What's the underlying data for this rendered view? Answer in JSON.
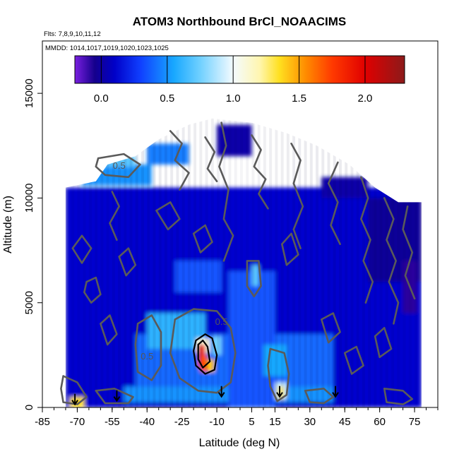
{
  "chart_data": {
    "type": "heatmap",
    "title": "ATOM3 Northbound BrCl_NOAACIMS",
    "subtitle_flights": "Flts: 7,8,9,10,11,12",
    "subtitle_dates": "MMDD: 1014,1017,1019,1020,1023,1025",
    "xlabel": "Latitude (deg N)",
    "ylabel": "Altitude (m)",
    "xlim": [
      -85,
      85
    ],
    "ylim": [
      0,
      17500
    ],
    "x_ticks": [
      -85,
      -70,
      -55,
      -40,
      -25,
      -10,
      5,
      15,
      30,
      45,
      60,
      75
    ],
    "y_ticks": [
      0,
      5000,
      10000,
      15000
    ],
    "colorbar": {
      "range": [
        -0.2,
        2.3
      ],
      "ticks": [
        0.0,
        0.5,
        1.0,
        1.5,
        2.0
      ],
      "tick_labels": [
        "0.0",
        "0.5",
        "1.0",
        "1.5",
        "2.0"
      ]
    },
    "colormap": [
      [
        -0.2,
        "#7a1fe0"
      ],
      [
        -0.05,
        "#15008c"
      ],
      [
        0.1,
        "#0000c8"
      ],
      [
        0.3,
        "#1040ff"
      ],
      [
        0.55,
        "#18a8ff"
      ],
      [
        0.75,
        "#70d0ff"
      ],
      [
        1.0,
        "#f4fbff"
      ],
      [
        1.2,
        "#fff6b0"
      ],
      [
        1.35,
        "#ffe020"
      ],
      [
        1.55,
        "#ff8c00"
      ],
      [
        1.75,
        "#ff3a00"
      ],
      [
        2.0,
        "#e00000"
      ],
      [
        2.3,
        "#8c1a1a"
      ]
    ],
    "contour_levels": [
      {
        "value": 0.5,
        "label": "0.5"
      }
    ],
    "footprint": [
      [
        -75,
        10500
      ],
      [
        -62,
        10800
      ],
      [
        -57,
        11600
      ],
      [
        -45,
        12000
      ],
      [
        -35,
        12800
      ],
      [
        -22,
        13500
      ],
      [
        -12,
        13800
      ],
      [
        5,
        13600
      ],
      [
        20,
        13100
      ],
      [
        33,
        12500
      ],
      [
        47,
        11600
      ],
      [
        58,
        10500
      ],
      [
        68,
        9800
      ],
      [
        78,
        9800
      ],
      [
        78,
        0
      ],
      [
        -75,
        0
      ]
    ],
    "cells": [
      {
        "x": [
          -75,
          78
        ],
        "y": [
          0,
          10500
        ],
        "v": 0.12
      },
      {
        "x": [
          -45,
          40
        ],
        "y": [
          1000,
          3500
        ],
        "v": 0.4
      },
      {
        "x": [
          -50,
          40
        ],
        "y": [
          250,
          1000
        ],
        "v": 0.5
      },
      {
        "x": [
          -40,
          -15
        ],
        "y": [
          2800,
          4500
        ],
        "v": 0.6
      },
      {
        "x": [
          -12,
          -8
        ],
        "y": [
          2500,
          3400
        ],
        "v": 0.75
      },
      {
        "x": [
          -28,
          -8
        ],
        "y": [
          5500,
          7000
        ],
        "v": 0.35
      },
      {
        "x": [
          -5,
          15
        ],
        "y": [
          0,
          6500
        ],
        "v": 0.35
      },
      {
        "x": [
          5,
          8
        ],
        "y": [
          5800,
          6800
        ],
        "v": 0.7
      },
      {
        "x": [
          10,
          20
        ],
        "y": [
          1500,
          3000
        ],
        "v": 0.55
      },
      {
        "x": [
          15,
          20
        ],
        "y": [
          400,
          1200
        ],
        "v": 0.9
      },
      {
        "x": [
          -68,
          -38
        ],
        "y": [
          10600,
          11600
        ],
        "v": 0.5
      },
      {
        "x": [
          -62,
          -45
        ],
        "y": [
          11500,
          12000
        ],
        "v": 0.7
      },
      {
        "x": [
          -40,
          -22
        ],
        "y": [
          11600,
          12600
        ],
        "v": 0.45
      },
      {
        "x": [
          35,
          55
        ],
        "y": [
          10000,
          11000
        ],
        "v": 0.02
      },
      {
        "x": [
          55,
          78
        ],
        "y": [
          6000,
          10000
        ],
        "v": -0.02
      },
      {
        "x": [
          70,
          76
        ],
        "y": [
          4500,
          7000
        ],
        "v": -0.08
      },
      {
        "x": [
          -10,
          5
        ],
        "y": [
          12000,
          13500
        ],
        "v": 0.02
      },
      {
        "x": [
          -73,
          -67
        ],
        "y": [
          0,
          500
        ],
        "v": 1.35
      },
      {
        "x": [
          -19,
          -13
        ],
        "y": [
          2600,
          3300
        ],
        "v": 1.1
      },
      {
        "x": [
          -18,
          -15
        ],
        "y": [
          1900,
          3000
        ],
        "v": 1.95
      },
      {
        "x": [
          -17,
          -14
        ],
        "y": [
          1700,
          2500
        ],
        "v": 1.7
      },
      {
        "x": [
          -14,
          -11
        ],
        "y": [
          1700,
          2300
        ],
        "v": 1.4
      },
      {
        "x": [
          16,
          19
        ],
        "y": [
          400,
          1000
        ],
        "v": 1.25
      }
    ],
    "contours": [
      {
        "level": 1.0,
        "points": [
          [
            -19,
            3200
          ],
          [
            -15,
            3500
          ],
          [
            -12,
            3300
          ],
          [
            -10,
            2500
          ],
          [
            -11,
            1800
          ],
          [
            -15,
            1600
          ],
          [
            -19,
            2000
          ],
          [
            -20,
            2700
          ],
          [
            -19,
            3200
          ]
        ]
      },
      {
        "level": 1.5,
        "points": [
          [
            -18,
            3000
          ],
          [
            -16,
            3200
          ],
          [
            -14,
            2900
          ],
          [
            -13,
            2200
          ],
          [
            -16,
            1900
          ],
          [
            -18,
            2300
          ],
          [
            -18,
            3000
          ]
        ]
      },
      {
        "level": 0.5,
        "points": [
          [
            -28,
            4200
          ],
          [
            -20,
            4700
          ],
          [
            -10,
            4600
          ],
          [
            -4,
            3800
          ],
          [
            -2,
            2600
          ],
          [
            -4,
            1200
          ],
          [
            -10,
            700
          ],
          [
            -18,
            800
          ],
          [
            -26,
            1400
          ],
          [
            -30,
            2600
          ],
          [
            -28,
            4200
          ]
        ]
      },
      {
        "level": 0.5,
        "points": [
          [
            -44,
            4000
          ],
          [
            -38,
            4400
          ],
          [
            -34,
            3600
          ],
          [
            -34,
            2000
          ],
          [
            -38,
            1300
          ],
          [
            -44,
            1700
          ],
          [
            -45,
            3000
          ],
          [
            -44,
            4000
          ]
        ]
      },
      {
        "level": 0.5,
        "points": [
          [
            -76,
            1500
          ],
          [
            -70,
            1200
          ],
          [
            -66,
            500
          ],
          [
            -70,
            150
          ],
          [
            -76,
            250
          ],
          [
            -77,
            900
          ],
          [
            -76,
            1500
          ]
        ]
      },
      {
        "level": 0.5,
        "points": [
          [
            -61,
            11900
          ],
          [
            -50,
            12100
          ],
          [
            -43,
            11600
          ],
          [
            -48,
            11000
          ],
          [
            -58,
            11100
          ],
          [
            -62,
            11500
          ],
          [
            -61,
            11900
          ]
        ]
      },
      {
        "level": 0.5,
        "points": [
          [
            3,
            7000
          ],
          [
            8,
            7000
          ],
          [
            9,
            5800
          ],
          [
            6,
            5300
          ],
          [
            3,
            5800
          ],
          [
            3,
            7000
          ]
        ]
      },
      {
        "level": 0.5,
        "points": [
          [
            13,
            2800
          ],
          [
            19,
            2600
          ],
          [
            21,
            1600
          ],
          [
            20,
            600
          ],
          [
            16,
            300
          ],
          [
            13,
            1000
          ],
          [
            12,
            2000
          ],
          [
            13,
            2800
          ]
        ]
      },
      {
        "level": 0.5,
        "points": [
          [
            -62,
            800
          ],
          [
            -54,
            900
          ],
          [
            -46,
            500
          ],
          [
            -48,
            200
          ],
          [
            -58,
            200
          ],
          [
            -62,
            800
          ]
        ]
      },
      {
        "level": 0.5,
        "points": [
          [
            28,
            800
          ],
          [
            36,
            900
          ],
          [
            40,
            500
          ],
          [
            36,
            200
          ],
          [
            30,
            250
          ],
          [
            28,
            800
          ]
        ]
      },
      {
        "level": 0.5,
        "points": [
          [
            62,
            900
          ],
          [
            70,
            800
          ],
          [
            74,
            400
          ],
          [
            70,
            150
          ],
          [
            63,
            250
          ],
          [
            62,
            900
          ]
        ]
      },
      {
        "level": 0.5,
        "points": [
          [
            -66,
            6000
          ],
          [
            -62,
            6200
          ],
          [
            -60,
            5400
          ],
          [
            -64,
            5000
          ],
          [
            -67,
            5500
          ],
          [
            -66,
            6000
          ]
        ]
      },
      {
        "level": 0.0,
        "points": [
          [
            -8,
            13600
          ],
          [
            -6,
            12500
          ],
          [
            -9,
            11500
          ],
          [
            -5,
            10400
          ],
          [
            -7,
            9000
          ],
          [
            -3,
            8200
          ],
          [
            -7,
            7000
          ]
        ]
      },
      {
        "level": 0.0,
        "points": [
          [
            22,
            12600
          ],
          [
            26,
            11800
          ],
          [
            23,
            10700
          ],
          [
            27,
            9600
          ],
          [
            23,
            8500
          ],
          [
            26,
            7600
          ]
        ]
      },
      {
        "level": 0.0,
        "points": [
          [
            42,
            11700
          ],
          [
            38,
            10700
          ],
          [
            42,
            9800
          ],
          [
            39,
            8700
          ],
          [
            43,
            7800
          ]
        ]
      },
      {
        "level": 0.0,
        "points": [
          [
            52,
            11000
          ],
          [
            55,
            10000
          ],
          [
            52,
            9000
          ],
          [
            56,
            8000
          ],
          [
            53,
            7000
          ],
          [
            57,
            6000
          ],
          [
            54,
            5000
          ]
        ]
      },
      {
        "level": 0.0,
        "points": [
          [
            62,
            10000
          ],
          [
            66,
            9000
          ],
          [
            63,
            8000
          ],
          [
            67,
            7000
          ],
          [
            64,
            6000
          ],
          [
            68,
            5000
          ],
          [
            66,
            4000
          ]
        ]
      },
      {
        "level": 0.0,
        "points": [
          [
            72,
            9600
          ],
          [
            70,
            8500
          ],
          [
            74,
            7400
          ],
          [
            71,
            6300
          ],
          [
            75,
            5200
          ]
        ]
      },
      {
        "level": 0.0,
        "points": [
          [
            -30,
            13200
          ],
          [
            -25,
            12600
          ],
          [
            -28,
            11800
          ],
          [
            -22,
            11200
          ],
          [
            -26,
            10400
          ]
        ]
      },
      {
        "level": 0.0,
        "points": [
          [
            -15,
            12900
          ],
          [
            -11,
            12200
          ],
          [
            -14,
            11400
          ],
          [
            -10,
            10800
          ]
        ]
      },
      {
        "level": 0.0,
        "points": [
          [
            5,
            13000
          ],
          [
            9,
            12300
          ],
          [
            6,
            11500
          ],
          [
            11,
            10900
          ],
          [
            8,
            10200
          ],
          [
            12,
            9500
          ]
        ]
      },
      {
        "level": 0.0,
        "points": [
          [
            -55,
            10300
          ],
          [
            -52,
            9600
          ],
          [
            -56,
            8800
          ],
          [
            -53,
            8000
          ]
        ]
      },
      {
        "level": 0.0,
        "points": [
          [
            -72,
            7600
          ],
          [
            -68,
            8200
          ],
          [
            -64,
            7600
          ],
          [
            -68,
            6900
          ],
          [
            -72,
            7600
          ]
        ]
      },
      {
        "level": 0.0,
        "points": [
          [
            -52,
            7200
          ],
          [
            -48,
            7600
          ],
          [
            -45,
            6800
          ],
          [
            -49,
            6300
          ],
          [
            -52,
            7200
          ]
        ]
      },
      {
        "level": 0.0,
        "points": [
          [
            -36,
            9400
          ],
          [
            -30,
            9800
          ],
          [
            -26,
            9000
          ],
          [
            -31,
            8500
          ],
          [
            -36,
            9400
          ]
        ]
      },
      {
        "level": 0.0,
        "points": [
          [
            -60,
            4000
          ],
          [
            -56,
            4400
          ],
          [
            -53,
            3500
          ],
          [
            -57,
            3000
          ],
          [
            -60,
            4000
          ]
        ]
      },
      {
        "level": 0.0,
        "points": [
          [
            35,
            4200
          ],
          [
            40,
            4500
          ],
          [
            43,
            3600
          ],
          [
            38,
            3100
          ],
          [
            35,
            4200
          ]
        ]
      },
      {
        "level": 0.0,
        "points": [
          [
            45,
            2600
          ],
          [
            50,
            2900
          ],
          [
            53,
            2000
          ],
          [
            48,
            1600
          ],
          [
            45,
            2600
          ]
        ]
      },
      {
        "level": 0.0,
        "points": [
          [
            58,
            3400
          ],
          [
            62,
            3800
          ],
          [
            65,
            2800
          ],
          [
            60,
            2400
          ],
          [
            58,
            3400
          ]
        ]
      },
      {
        "level": 0.0,
        "points": [
          [
            18,
            7800
          ],
          [
            22,
            8300
          ],
          [
            25,
            7300
          ],
          [
            20,
            6800
          ],
          [
            18,
            7800
          ]
        ]
      },
      {
        "level": 0.0,
        "points": [
          [
            -20,
            8300
          ],
          [
            -15,
            8700
          ],
          [
            -12,
            7900
          ],
          [
            -17,
            7400
          ],
          [
            -20,
            8300
          ]
        ]
      }
    ],
    "contour_labels": [
      {
        "text": "0.5",
        "x": -52,
        "y": 11400
      },
      {
        "text": "0.5",
        "x": -8,
        "y": 3950
      },
      {
        "text": "0.5",
        "x": -40,
        "y": 2300
      }
    ],
    "markers": [
      {
        "x": -71,
        "y": 180
      },
      {
        "x": -53,
        "y": 350
      },
      {
        "x": -8,
        "y": 550
      },
      {
        "x": 17,
        "y": 550
      },
      {
        "x": 41,
        "y": 550
      }
    ]
  }
}
